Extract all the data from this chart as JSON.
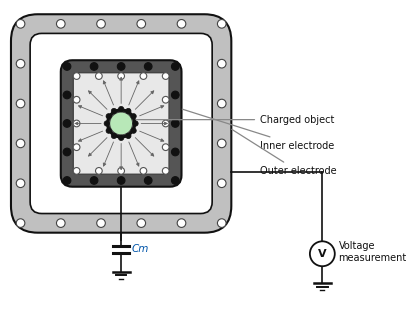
{
  "bg_color": "#ffffff",
  "outer_cage_color": "#c0c0c0",
  "outer_cage_inner_color": "#c0c0c0",
  "inner_electrode_color": "#555555",
  "field_region_color": "#e8e8e8",
  "charged_object_color": "#b8e8b8",
  "wire_color": "#111111",
  "dot_white_fc": "#ffffff",
  "dot_white_ec": "#444444",
  "dot_black_fc": "#111111",
  "dot_black_ec": "#111111",
  "dot_minus_fc": "#ffffff",
  "dot_minus_ec": "#555555",
  "labels": [
    "Charged object",
    "Inner electrode",
    "Outer electrode"
  ],
  "capacitor_label": "Cm",
  "voltmeter_label": "V",
  "voltage_label": "Voltage\nmeasurement",
  "annotation_color": "#888888",
  "cap_color": "#0055aa"
}
